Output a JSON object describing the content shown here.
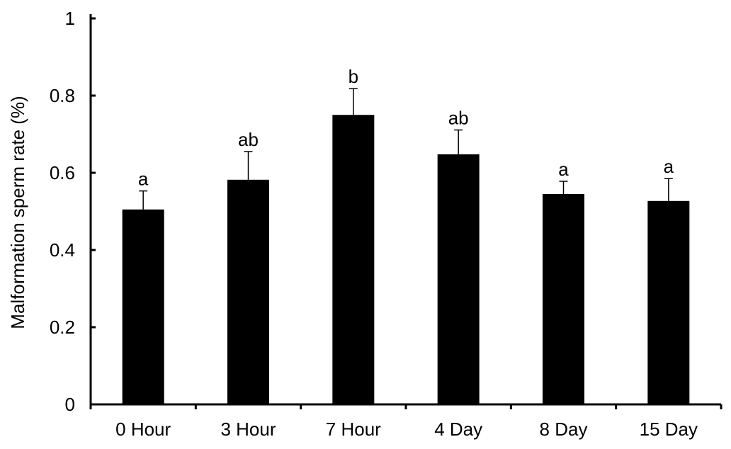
{
  "chart_data": {
    "type": "bar",
    "title": "",
    "xlabel": "",
    "ylabel": "Malformation sperm rate (%)",
    "ylim": [
      0,
      1
    ],
    "yticks": [
      "0",
      "0.2",
      "0.4",
      "0.6",
      "0.8",
      "1"
    ],
    "ytick_values": [
      0,
      0.2,
      0.4,
      0.6,
      0.8,
      1
    ],
    "categories": [
      "0 Hour",
      "3 Hour",
      "7 Hour",
      "4 Day",
      "8 Day",
      "15 Day"
    ],
    "values": [
      0.505,
      0.582,
      0.75,
      0.648,
      0.545,
      0.527
    ],
    "error_upper": [
      0.048,
      0.073,
      0.068,
      0.063,
      0.033,
      0.058
    ],
    "significance": [
      "a",
      "ab",
      "b",
      "ab",
      "a",
      "a"
    ],
    "bar_color": "#000000",
    "grid": false,
    "legend": "none"
  }
}
